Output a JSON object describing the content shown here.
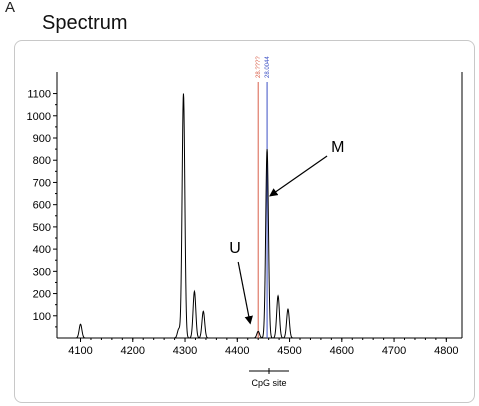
{
  "panel_label": "A",
  "title": "Spectrum",
  "colors": {
    "trace": "#000000",
    "u_line": "#d9604a",
    "m_line": "#3a4fc4",
    "frame": "#c8c8c8"
  },
  "chart_data": {
    "type": "line",
    "title": "Spectrum",
    "xlabel": "",
    "ylabel": "",
    "xlim": [
      4055,
      4830
    ],
    "ylim": [
      0,
      1170
    ],
    "xticks": [
      "4100",
      "4200",
      "4300",
      "4400",
      "4500",
      "4600",
      "4700",
      "4800"
    ],
    "yticks": [
      "100",
      "200",
      "300",
      "400",
      "500",
      "600",
      "700",
      "800",
      "900",
      "1000",
      "1100"
    ],
    "grid": false,
    "peaks": [
      {
        "x": 4100,
        "y": 62
      },
      {
        "x": 4288,
        "y": 40
      },
      {
        "x": 4297,
        "y": 1100
      },
      {
        "x": 4318,
        "y": 210
      },
      {
        "x": 4335,
        "y": 120
      },
      {
        "x": 4440,
        "y": 30
      },
      {
        "x": 4457,
        "y": 850
      },
      {
        "x": 4478,
        "y": 190
      },
      {
        "x": 4497,
        "y": 130
      }
    ],
    "markers": [
      {
        "label": "28.????",
        "x": 4440,
        "color": "#d9604a"
      },
      {
        "label": "28.0044",
        "x": 4457,
        "color": "#3a4fc4"
      }
    ],
    "annotations": [
      {
        "text": "U",
        "x": 4440,
        "y": 30
      },
      {
        "text": "M",
        "x": 4457,
        "y": 640
      }
    ],
    "bracket_label": "CpG site"
  }
}
